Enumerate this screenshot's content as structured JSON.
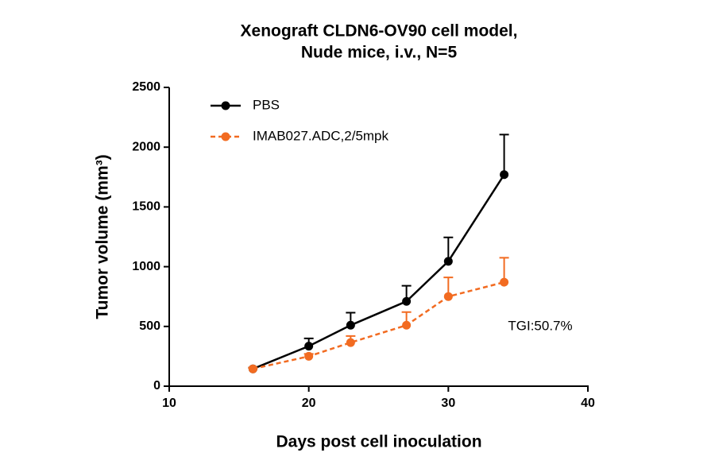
{
  "chart_data": {
    "type": "line",
    "title": [
      "Xenograft CLDN6-OV90 cell model,",
      "Nude mice, i.v., N=5"
    ],
    "x_label": "Days post cell inoculation",
    "y_label": "Tumor volume (mm³)",
    "x": [
      16,
      20,
      23,
      27,
      30,
      34
    ],
    "series": [
      {
        "name": "PBS",
        "color": "#000000",
        "dashed": false,
        "values": [
          145,
          335,
          510,
          710,
          1045,
          1770
        ],
        "errors": [
          10,
          65,
          105,
          130,
          200,
          335
        ]
      },
      {
        "name": "IMAB027.ADC,2/5mpk",
        "color": "#f26b21",
        "dashed": true,
        "values": [
          145,
          250,
          365,
          510,
          750,
          870
        ],
        "errors": [
          10,
          20,
          55,
          110,
          160,
          205
        ]
      }
    ],
    "xlim": [
      10,
      40
    ],
    "xticks": [
      10,
      20,
      30,
      40
    ],
    "ylim": [
      0,
      2500
    ],
    "yticks": [
      0,
      500,
      1000,
      1500,
      2000,
      2500
    ],
    "annotation": "TGI:50.7%",
    "legend": "top-left",
    "grid": false
  }
}
